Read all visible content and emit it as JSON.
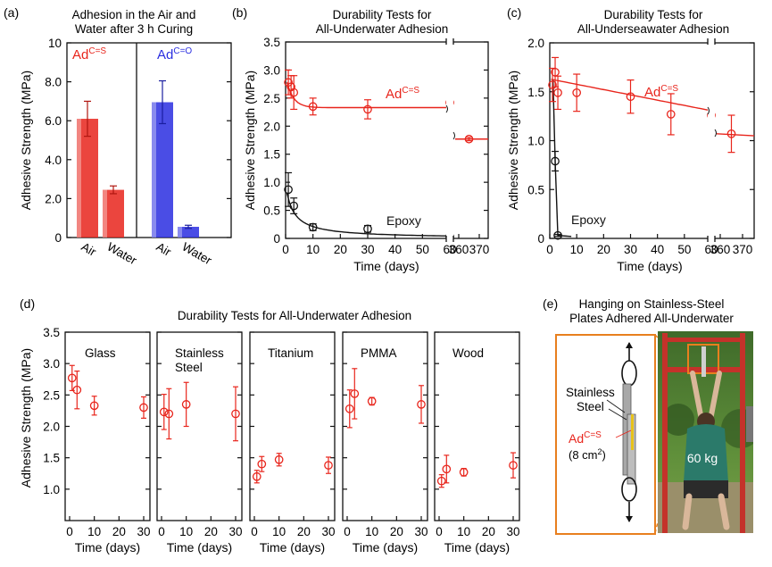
{
  "colors": {
    "red": "#e8251c",
    "blue": "#2a2ee0",
    "black": "#111111",
    "orange": "#e87f1e"
  },
  "panels": {
    "a": {
      "label": "(a)",
      "title_line1": "Adhesion in the Air and",
      "title_line2": "Water after 3 h Curing"
    },
    "b": {
      "label": "(b)",
      "title_line1": "Durability Tests for",
      "title_line2": "All-Underwater Adhesion"
    },
    "c": {
      "label": "(c)",
      "title_line1": "Durability Tests for",
      "title_line2": "All-Underseawater Adhesion"
    },
    "d": {
      "label": "(d)",
      "title": "Durability Tests for All-Underwater Adhesion"
    },
    "e": {
      "label": "(e)",
      "title_line1": "Hanging on Stainless-Steel",
      "title_line2": "Plates Adhered All-Underwater"
    }
  },
  "labels": {
    "ad": "Ad",
    "cs_sup": "C=S",
    "co_sup": "C=O",
    "epoxy": "Epoxy",
    "y_axis": "Adhesive Strength (MPa)",
    "x_axis": "Time (days)",
    "stainless": "Stainless",
    "steel": "Steel",
    "area": "(8 cm",
    "area_sup": "2",
    "area_close": ")",
    "weight": "60 kg"
  },
  "chart_data": [
    {
      "id": "a",
      "type": "bar",
      "title": "Adhesion in the Air and Water after 3 h Curing",
      "ylabel": "Adhesive Strength (MPa)",
      "ylim": [
        0,
        10
      ],
      "yticks": [
        "0",
        "2.0",
        "4.0",
        "6.0",
        "8.0",
        "10"
      ],
      "groups": [
        {
          "name": "AdC=S",
          "color": "red",
          "categories": [
            "Air",
            "Water"
          ],
          "values": [
            6.1,
            2.45
          ],
          "errors": [
            0.9,
            0.2
          ]
        },
        {
          "name": "AdC=O",
          "color": "blue",
          "categories": [
            "Air",
            "Water"
          ],
          "values": [
            6.95,
            0.55
          ],
          "errors": [
            1.1,
            0.08
          ]
        }
      ]
    },
    {
      "id": "b",
      "type": "scatter",
      "title": "Durability Tests for All-Underwater Adhesion",
      "xlabel": "Time (days)",
      "ylabel": "Adhesive Strength (MPa)",
      "ylim": [
        0,
        3.5
      ],
      "yticks": [
        "0",
        "0.5",
        "1.0",
        "1.5",
        "2.0",
        "2.5",
        "3.0",
        "3.5"
      ],
      "xticks": [
        "0",
        "10",
        "20",
        "30",
        "40",
        "50",
        "60",
        "360",
        "370"
      ],
      "xbreak": [
        60,
        360
      ],
      "series": [
        {
          "name": "AdC=S",
          "color": "red",
          "x": [
            1,
            2,
            3,
            10,
            30,
            60,
            365
          ],
          "y": [
            2.78,
            2.7,
            2.6,
            2.35,
            2.3,
            2.42,
            1.77
          ],
          "err": [
            0.22,
            0.2,
            0.3,
            0.15,
            0.17,
            0.2,
            0.03
          ]
        },
        {
          "name": "Epoxy",
          "color": "black",
          "x": [
            1,
            3,
            10,
            30,
            60
          ],
          "y": [
            0.87,
            0.58,
            0.2,
            0.17,
            0.03
          ],
          "err": [
            0.3,
            0.14,
            0.06,
            0.06,
            0.02
          ]
        }
      ]
    },
    {
      "id": "c",
      "type": "scatter",
      "title": "Durability Tests for All-Underseawater Adhesion",
      "xlabel": "Time (days)",
      "ylabel": "Adhesive Strength (MPa)",
      "ylim": [
        0,
        2.0
      ],
      "yticks": [
        "0",
        "0.5",
        "1.0",
        "1.5",
        "2.0"
      ],
      "xticks": [
        "0",
        "10",
        "20",
        "30",
        "40",
        "50",
        "60",
        "360",
        "370"
      ],
      "xbreak": [
        60,
        360
      ],
      "series": [
        {
          "name": "AdC=S",
          "color": "red",
          "x": [
            1,
            2,
            3,
            10,
            30,
            45,
            60,
            365
          ],
          "y": [
            1.57,
            1.7,
            1.49,
            1.49,
            1.45,
            1.27,
            1.26,
            1.07
          ],
          "err": [
            0.17,
            0.15,
            0.17,
            0.19,
            0.17,
            0.21,
            0.1,
            0.19
          ]
        },
        {
          "name": "Epoxy",
          "color": "black",
          "x": [
            2,
            3
          ],
          "y": [
            0.79,
            0.03
          ],
          "err": [
            0.1,
            0.01
          ]
        }
      ]
    },
    {
      "id": "d",
      "type": "scatter",
      "title": "Durability Tests for All-Underwater Adhesion",
      "xlabel": "Time (days)",
      "ylabel": "Adhesive Strength (MPa)",
      "ylim": [
        0.5,
        3.5
      ],
      "yticks": [
        "1.0",
        "1.5",
        "2.0",
        "2.5",
        "3.0",
        "3.5"
      ],
      "xticks": [
        "0",
        "10",
        "20",
        "30"
      ],
      "subplots": [
        {
          "name": "Glass",
          "x": [
            1,
            3,
            10,
            30
          ],
          "y": [
            2.77,
            2.58,
            2.33,
            2.3
          ],
          "err": [
            0.2,
            0.3,
            0.15,
            0.17
          ]
        },
        {
          "name": "Stainless Steel",
          "name_line1": "Stainless",
          "name_line2": "Steel",
          "x": [
            1,
            3,
            10,
            30
          ],
          "y": [
            2.23,
            2.2,
            2.35,
            2.2
          ],
          "err": [
            0.28,
            0.4,
            0.35,
            0.43
          ]
        },
        {
          "name": "Titanium",
          "x": [
            1,
            3,
            10,
            30
          ],
          "y": [
            1.2,
            1.4,
            1.47,
            1.38
          ],
          "err": [
            0.1,
            0.12,
            0.1,
            0.13
          ]
        },
        {
          "name": "PMMA",
          "x": [
            1,
            3,
            10,
            30
          ],
          "y": [
            2.28,
            2.52,
            2.4,
            2.35
          ],
          "err": [
            0.3,
            0.4,
            0.06,
            0.3
          ]
        },
        {
          "name": "Wood",
          "x": [
            1,
            3,
            10,
            30
          ],
          "y": [
            1.13,
            1.32,
            1.27,
            1.38
          ],
          "err": [
            0.1,
            0.22,
            0.06,
            0.2
          ]
        }
      ]
    }
  ]
}
